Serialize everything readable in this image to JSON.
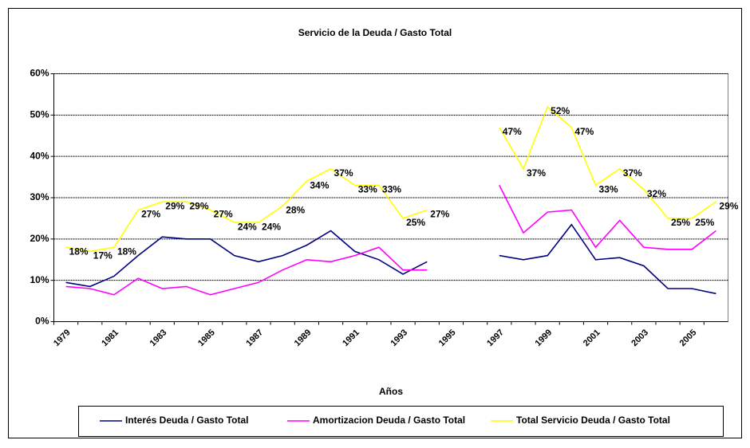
{
  "chart_data": {
    "type": "line",
    "title": "Servicio de la Deuda / Gasto Total",
    "x_label": "Años",
    "categories": [
      "1979",
      null,
      "1981",
      null,
      "1983",
      null,
      "1985",
      null,
      "1987",
      null,
      "1989",
      null,
      "1991",
      null,
      "1993",
      null,
      "1995",
      null,
      "1997",
      null,
      "1999",
      null,
      "2001",
      null,
      "2003",
      null,
      "2005",
      null
    ],
    "series": [
      {
        "name": "Interés Deuda / Gasto Total",
        "color": "#000080",
        "values": [
          9.5,
          8.5,
          11,
          16,
          20.5,
          20,
          20,
          16,
          14.5,
          16,
          18.5,
          22,
          17,
          15,
          11.5,
          14.5,
          null,
          null,
          16,
          15,
          16,
          23.5,
          15,
          15.5,
          13.5,
          8,
          8,
          6.8
        ]
      },
      {
        "name": "Amortizacion Deuda / Gasto Total",
        "color": "#ff00ff",
        "values": [
          8.5,
          8,
          6.5,
          10.5,
          8,
          8.5,
          6.5,
          8,
          9.5,
          12.5,
          15,
          14.5,
          16,
          18,
          12.5,
          12.5,
          null,
          null,
          33,
          21.5,
          26.5,
          27,
          18,
          24.5,
          18,
          17.5,
          17.5,
          22
        ]
      },
      {
        "name": "Total Servicio Deuda / Gasto Total",
        "color": "#ffff00",
        "values": [
          18,
          17,
          18,
          27,
          29,
          29,
          27,
          24,
          24,
          28,
          34,
          37,
          33,
          33,
          25,
          27,
          null,
          null,
          47,
          37,
          52,
          47,
          33,
          37,
          32,
          25,
          25,
          29
        ],
        "value_labels": [
          "18%",
          "17%",
          "18%",
          "27%",
          "29%",
          "29%",
          "27%",
          "24%",
          "24%",
          "28%",
          "34%",
          "37%",
          "33%",
          "33%",
          "25%",
          "27%",
          null,
          null,
          "47%",
          "37%",
          "52%",
          "47%",
          "33%",
          "37%",
          "32%",
          "25%",
          "25%",
          "29%"
        ]
      }
    ],
    "ylim": [
      0,
      60
    ],
    "yticks": [
      {
        "value": 0,
        "label": "0%"
      },
      {
        "value": 10,
        "label": "10%"
      },
      {
        "value": 20,
        "label": "20%"
      },
      {
        "value": 30,
        "label": "30%"
      },
      {
        "value": 40,
        "label": "40%"
      },
      {
        "value": 50,
        "label": "50%"
      },
      {
        "value": 60,
        "label": "60%"
      }
    ],
    "grid": true,
    "legend": "bottom"
  }
}
